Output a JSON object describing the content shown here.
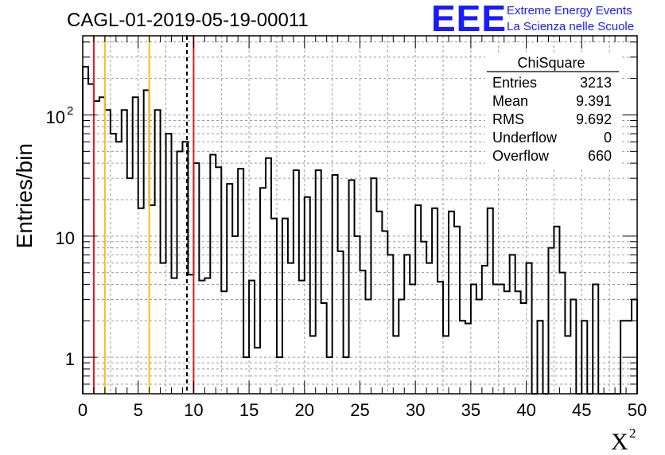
{
  "chart_data": {
    "type": "histogram",
    "title": "CAGL-01-2019-05-19-00011",
    "xlabel_base": "X",
    "xlabel_sup": "2",
    "ylabel": "Entries/bin",
    "xlim": [
      0,
      50
    ],
    "ylim": [
      0.5,
      450
    ],
    "yscale": "log",
    "bin_width": 0.5,
    "grid": true,
    "x_ticks": [
      "0",
      "5",
      "10",
      "15",
      "20",
      "25",
      "30",
      "35",
      "40",
      "45",
      "50"
    ],
    "y_tick_labels": {
      "one": "1",
      "ten": "10",
      "hundred_base": "10",
      "hundred_exp": "2"
    },
    "values": [
      250,
      180,
      130,
      140,
      110,
      70,
      60,
      110,
      30,
      140,
      17,
      160,
      18,
      110,
      6,
      70,
      4.5,
      50,
      60,
      4.8,
      40,
      4.3,
      4.5,
      47,
      37,
      3.5,
      27,
      10,
      36,
      1,
      4.3,
      1.2,
      25,
      44,
      14,
      1,
      14,
      6,
      35,
      4.3,
      21,
      1.5,
      35,
      2.8,
      1,
      32,
      7.5,
      1,
      29,
      10,
      5.2,
      3,
      30,
      16,
      11,
      7,
      1.5,
      3,
      7,
      4,
      18,
      9,
      6,
      17,
      4.2,
      1.5,
      16,
      12,
      2,
      1.9,
      4,
      3,
      5.7,
      17,
      4,
      4,
      3.5,
      7,
      3.5,
      2.8,
      6,
      0.4,
      2,
      0.4,
      8,
      12,
      5,
      1.5,
      3,
      0.5,
      2,
      0.5,
      4,
      0.5,
      0.4,
      0.4,
      0.4,
      2,
      2,
      3
    ],
    "vlines": [
      {
        "x": 1,
        "color": "#e31a1c",
        "style": "solid"
      },
      {
        "x": 2,
        "color": "#f2c21b",
        "style": "solid"
      },
      {
        "x": 6,
        "color": "#f2c21b",
        "style": "solid"
      },
      {
        "x": 9.4,
        "color": "#000000",
        "style": "dashed"
      },
      {
        "x": 10,
        "color": "#e31a1c",
        "style": "solid"
      }
    ],
    "stats": {
      "name": "ChiSquare",
      "rows": [
        {
          "label": "Entries",
          "value": "3213"
        },
        {
          "label": "Mean",
          "value": "9.391"
        },
        {
          "label": "RMS",
          "value": "9.692"
        },
        {
          "label": "Underflow",
          "value": "0"
        },
        {
          "label": "Overflow",
          "value": "660"
        }
      ]
    }
  },
  "logo": {
    "text": "EEE",
    "line1": "Extreme Energy Events",
    "line2": "La Scienza nelle Scuole",
    "color": "#1a1aff"
  }
}
